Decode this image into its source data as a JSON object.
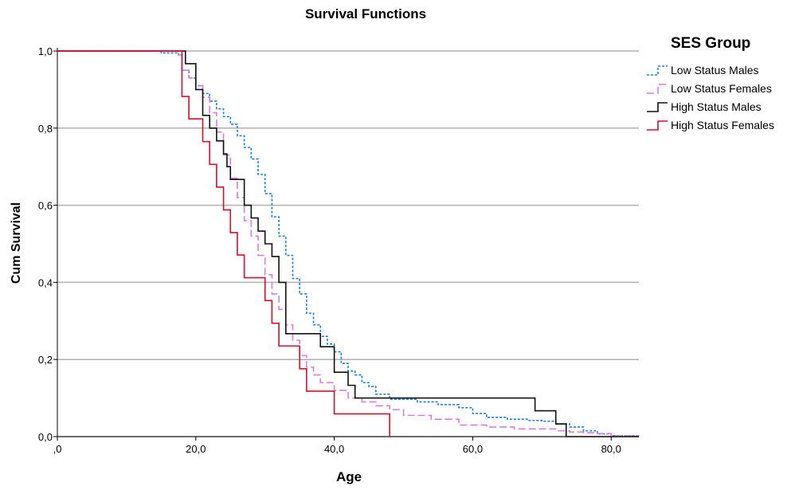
{
  "chart_data": {
    "type": "line",
    "step": true,
    "title": "Survival Functions",
    "xlabel": "Age",
    "ylabel": "Cum Survival",
    "xlim": [
      0,
      84
    ],
    "ylim": [
      0,
      1.0
    ],
    "xticks": [
      0,
      20,
      40,
      60,
      80
    ],
    "xtick_labels": [
      ",0",
      "20,0",
      "40,0",
      "60,0",
      "80,0"
    ],
    "yticks": [
      0,
      0.2,
      0.4,
      0.6,
      0.8,
      1.0
    ],
    "ytick_labels": [
      "0,0",
      "0,2",
      "0,4",
      "0,6",
      "0,8",
      "1,0"
    ],
    "grid": "horizontal",
    "legend": {
      "title": "SES Group",
      "position": "right"
    },
    "series": [
      {
        "name": "Low Status Males",
        "color": "#1f7fd6",
        "dash": "3,2",
        "x": [
          0,
          15,
          17.5,
          18,
          19,
          20,
          21,
          22,
          23,
          24,
          25,
          26,
          27,
          28,
          29,
          30,
          31,
          32,
          33,
          34,
          35,
          36,
          37,
          38,
          39,
          40,
          41,
          42,
          43,
          44,
          45,
          46,
          48,
          50,
          52,
          55,
          58,
          60,
          62,
          65,
          68,
          70,
          72,
          74,
          76,
          78,
          80,
          84
        ],
        "y": [
          1.0,
          0.995,
          0.99,
          0.95,
          0.93,
          0.91,
          0.89,
          0.87,
          0.85,
          0.83,
          0.81,
          0.78,
          0.75,
          0.72,
          0.68,
          0.63,
          0.57,
          0.52,
          0.47,
          0.41,
          0.37,
          0.32,
          0.29,
          0.26,
          0.24,
          0.22,
          0.19,
          0.17,
          0.16,
          0.14,
          0.13,
          0.11,
          0.097,
          0.097,
          0.09,
          0.083,
          0.075,
          0.06,
          0.05,
          0.045,
          0.042,
          0.04,
          0.033,
          0.025,
          0.015,
          0.007,
          0.002,
          0.0
        ]
      },
      {
        "name": "Low Status Females",
        "color": "#d67fdc",
        "dash": "9,4",
        "x": [
          0,
          17.5,
          18,
          19,
          20,
          21,
          22,
          23,
          24,
          25,
          26,
          27,
          28,
          29,
          30,
          31,
          32,
          33,
          34,
          35,
          36,
          37,
          38,
          40,
          42,
          44,
          46,
          48,
          50,
          54,
          58,
          62,
          66,
          70,
          72,
          74,
          76,
          78,
          80,
          84
        ],
        "y": [
          1.0,
          0.99,
          0.95,
          0.93,
          0.91,
          0.88,
          0.84,
          0.79,
          0.73,
          0.67,
          0.62,
          0.56,
          0.52,
          0.47,
          0.42,
          0.37,
          0.33,
          0.29,
          0.25,
          0.21,
          0.18,
          0.16,
          0.14,
          0.12,
          0.1,
          0.09,
          0.08,
          0.07,
          0.055,
          0.045,
          0.03,
          0.025,
          0.02,
          0.02,
          0.015,
          0.012,
          0.01,
          0.008,
          0.002,
          0.0
        ]
      },
      {
        "name": "High Status Males",
        "color": "#111111",
        "dash": "",
        "x": [
          0,
          18.5,
          20,
          21,
          22,
          23,
          24,
          24.5,
          25,
          27,
          28,
          29,
          30,
          31,
          32,
          33,
          38,
          40,
          42,
          43,
          69,
          72,
          73.5,
          84
        ],
        "y": [
          1.0,
          0.967,
          0.9,
          0.833,
          0.8,
          0.767,
          0.733,
          0.7,
          0.667,
          0.6,
          0.567,
          0.533,
          0.5,
          0.467,
          0.4,
          0.267,
          0.233,
          0.167,
          0.133,
          0.1,
          0.067,
          0.033,
          0.0,
          0.0
        ]
      },
      {
        "name": "High Status Females",
        "color": "#d0102c",
        "dash": "",
        "x": [
          0,
          18,
          19,
          21,
          22,
          23,
          24,
          25,
          26,
          27,
          28,
          29,
          30,
          31,
          32,
          33,
          34,
          35,
          36,
          40,
          48
        ],
        "y": [
          1.0,
          0.882,
          0.824,
          0.765,
          0.706,
          0.647,
          0.588,
          0.529,
          0.471,
          0.412,
          0.412,
          0.412,
          0.353,
          0.294,
          0.235,
          0.235,
          0.235,
          0.176,
          0.118,
          0.059,
          0.0
        ]
      }
    ]
  }
}
